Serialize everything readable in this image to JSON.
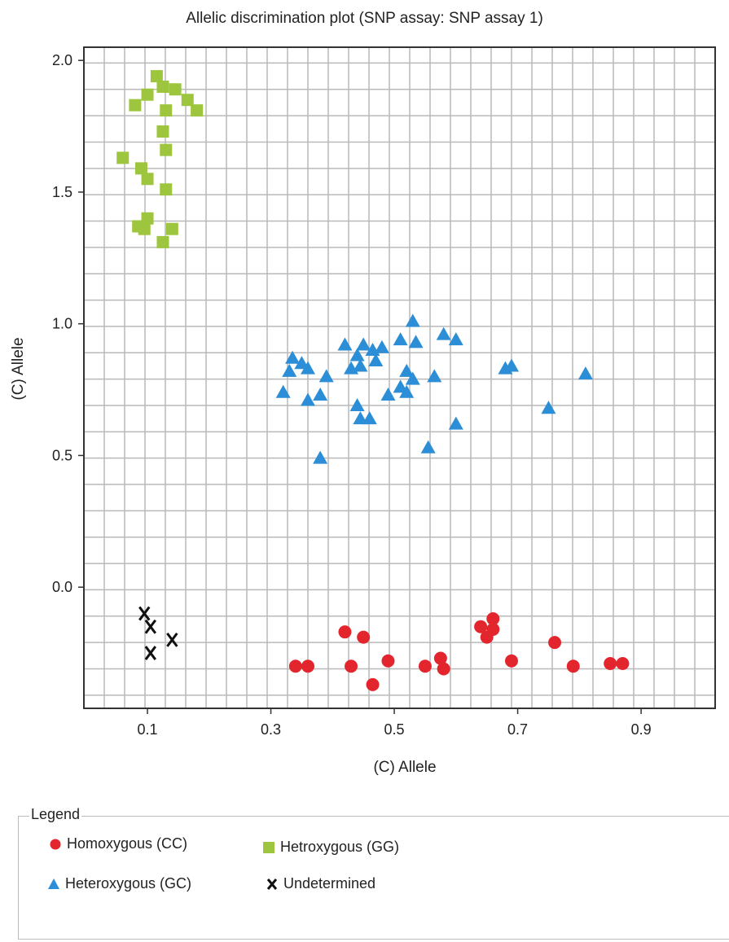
{
  "chart_data": {
    "type": "scatter",
    "title": "Allelic discrimination plot (SNP assay: SNP assay 1)",
    "xlabel": "(C) Allele",
    "ylabel": "(C) Allele",
    "x_ticks": [
      "0.1",
      "0.3",
      "0.5",
      "0.7",
      "0.9"
    ],
    "y_ticks": [
      "0.0",
      "0.5",
      "1.0",
      "1.5",
      "2.0"
    ],
    "xlim": [
      -0.003,
      1.02
    ],
    "ylim": [
      -0.46,
      2.05
    ],
    "grid": true,
    "legend_title": "Legend",
    "legend_position": "bottom",
    "series": [
      {
        "name": "Homoxygous (CC)",
        "marker": "circle",
        "color": "#e3262e",
        "points": [
          [
            0.34,
            -0.3
          ],
          [
            0.36,
            -0.3
          ],
          [
            0.42,
            -0.17
          ],
          [
            0.43,
            -0.3
          ],
          [
            0.45,
            -0.19
          ],
          [
            0.465,
            -0.37
          ],
          [
            0.49,
            -0.28
          ],
          [
            0.55,
            -0.3
          ],
          [
            0.575,
            -0.27
          ],
          [
            0.58,
            -0.31
          ],
          [
            0.64,
            -0.15
          ],
          [
            0.65,
            -0.19
          ],
          [
            0.66,
            -0.16
          ],
          [
            0.66,
            -0.12
          ],
          [
            0.69,
            -0.28
          ],
          [
            0.76,
            -0.21
          ],
          [
            0.79,
            -0.3
          ],
          [
            0.85,
            -0.29
          ],
          [
            0.87,
            -0.29
          ]
        ]
      },
      {
        "name": "Hetroxygous (GG)",
        "marker": "square",
        "color": "#9dc63e",
        "points": [
          [
            0.06,
            1.63
          ],
          [
            0.08,
            1.83
          ],
          [
            0.09,
            1.59
          ],
          [
            0.1,
            1.55
          ],
          [
            0.1,
            1.87
          ],
          [
            0.115,
            1.94
          ],
          [
            0.125,
            1.9
          ],
          [
            0.145,
            1.89
          ],
          [
            0.165,
            1.85
          ],
          [
            0.18,
            1.81
          ],
          [
            0.125,
            1.73
          ],
          [
            0.13,
            1.66
          ],
          [
            0.13,
            1.81
          ],
          [
            0.13,
            1.51
          ],
          [
            0.085,
            1.37
          ],
          [
            0.095,
            1.36
          ],
          [
            0.1,
            1.4
          ],
          [
            0.125,
            1.31
          ],
          [
            0.14,
            1.36
          ]
        ]
      },
      {
        "name": "Heteroxygous (GC)",
        "marker": "triangle",
        "color": "#2b8ed6",
        "points": [
          [
            0.32,
            0.74
          ],
          [
            0.33,
            0.82
          ],
          [
            0.335,
            0.87
          ],
          [
            0.35,
            0.85
          ],
          [
            0.36,
            0.71
          ],
          [
            0.36,
            0.83
          ],
          [
            0.38,
            0.73
          ],
          [
            0.39,
            0.8
          ],
          [
            0.38,
            0.49
          ],
          [
            0.42,
            0.92
          ],
          [
            0.43,
            0.83
          ],
          [
            0.44,
            0.88
          ],
          [
            0.445,
            0.84
          ],
          [
            0.44,
            0.69
          ],
          [
            0.445,
            0.64
          ],
          [
            0.45,
            0.92
          ],
          [
            0.46,
            0.64
          ],
          [
            0.465,
            0.9
          ],
          [
            0.47,
            0.86
          ],
          [
            0.48,
            0.91
          ],
          [
            0.49,
            0.73
          ],
          [
            0.51,
            0.76
          ],
          [
            0.51,
            0.94
          ],
          [
            0.52,
            0.82
          ],
          [
            0.52,
            0.74
          ],
          [
            0.53,
            0.79
          ],
          [
            0.53,
            1.01
          ],
          [
            0.535,
            0.93
          ],
          [
            0.555,
            0.53
          ],
          [
            0.565,
            0.8
          ],
          [
            0.58,
            0.96
          ],
          [
            0.6,
            0.94
          ],
          [
            0.6,
            0.62
          ],
          [
            0.68,
            0.83
          ],
          [
            0.69,
            0.84
          ],
          [
            0.75,
            0.68
          ],
          [
            0.81,
            0.81
          ]
        ]
      },
      {
        "name": "Undetermined",
        "marker": "x",
        "color": "#111111",
        "points": [
          [
            0.095,
            -0.1
          ],
          [
            0.105,
            -0.15
          ],
          [
            0.105,
            -0.25
          ],
          [
            0.14,
            -0.2
          ]
        ]
      }
    ]
  }
}
